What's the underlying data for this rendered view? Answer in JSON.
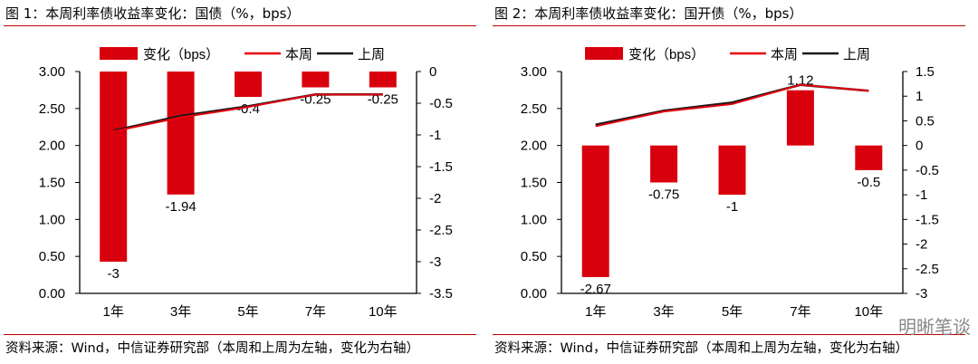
{
  "chart_data": [
    {
      "type": "bar+line",
      "title": "图 1：本周利率债收益率变化：国债（%，bps）",
      "categories": [
        "1年",
        "3年",
        "5年",
        "7年",
        "10年"
      ],
      "left_axis": {
        "range": [
          0,
          3
        ],
        "ticks": [
          "0.00",
          "0.50",
          "1.00",
          "1.50",
          "2.00",
          "2.50",
          "3.00"
        ]
      },
      "right_axis": {
        "range": [
          -3.5,
          0
        ],
        "ticks": [
          "-3.5",
          "-3",
          "-2.5",
          "-2",
          "-1.5",
          "-1",
          "-0.5",
          "0"
        ]
      },
      "series": [
        {
          "name": "变化（bps）",
          "kind": "bar",
          "axis": "right",
          "color": "#d9000d",
          "values": [
            -3,
            -1.94,
            -0.4,
            -0.25,
            -0.25
          ],
          "labels": [
            "-3",
            "-1.94",
            "-0.4",
            "-0.25",
            "-0.25"
          ]
        },
        {
          "name": "本周",
          "kind": "line",
          "axis": "left",
          "color": "#e8000d",
          "values": [
            2.19,
            2.38,
            2.52,
            2.69,
            2.69
          ]
        },
        {
          "name": "上周",
          "kind": "line",
          "axis": "left",
          "color": "#1a1a1a",
          "values": [
            2.2,
            2.4,
            2.53,
            2.69,
            2.69
          ]
        }
      ],
      "legend": "top",
      "source": "资料来源：Wind，中信证券研究部（本周和上周为左轴，变化为右轴）"
    },
    {
      "type": "bar+line",
      "title": "图 2：本周利率债收益率变化：国开债（%，bps）",
      "categories": [
        "1年",
        "3年",
        "5年",
        "7年",
        "10年"
      ],
      "left_axis": {
        "range": [
          0,
          3
        ],
        "ticks": [
          "0.00",
          "0.50",
          "1.00",
          "1.50",
          "2.00",
          "2.50",
          "3.00"
        ]
      },
      "right_axis": {
        "range": [
          -3,
          1.5
        ],
        "ticks": [
          "-3",
          "-2.5",
          "-2",
          "-1.5",
          "-1",
          "-0.5",
          "0",
          "0.5",
          "1",
          "1.5"
        ]
      },
      "series": [
        {
          "name": "变化（bps）",
          "kind": "bar",
          "axis": "right",
          "color": "#d9000d",
          "values": [
            -2.67,
            -0.75,
            -1,
            1.12,
            -0.5
          ],
          "labels": [
            "-2.67",
            "-0.75",
            "-1",
            "1.12",
            "-0.5"
          ]
        },
        {
          "name": "本周",
          "kind": "line",
          "axis": "left",
          "color": "#e8000d",
          "values": [
            2.26,
            2.46,
            2.56,
            2.82,
            2.74
          ]
        },
        {
          "name": "上周",
          "kind": "line",
          "axis": "left",
          "color": "#1a1a1a",
          "values": [
            2.28,
            2.47,
            2.58,
            2.82,
            2.74
          ]
        }
      ],
      "legend": "top",
      "source": "资料来源：Wind，中信证券研究部（本周和上周为左轴，变化为右轴）"
    }
  ],
  "watermark": "明晰笔谈"
}
